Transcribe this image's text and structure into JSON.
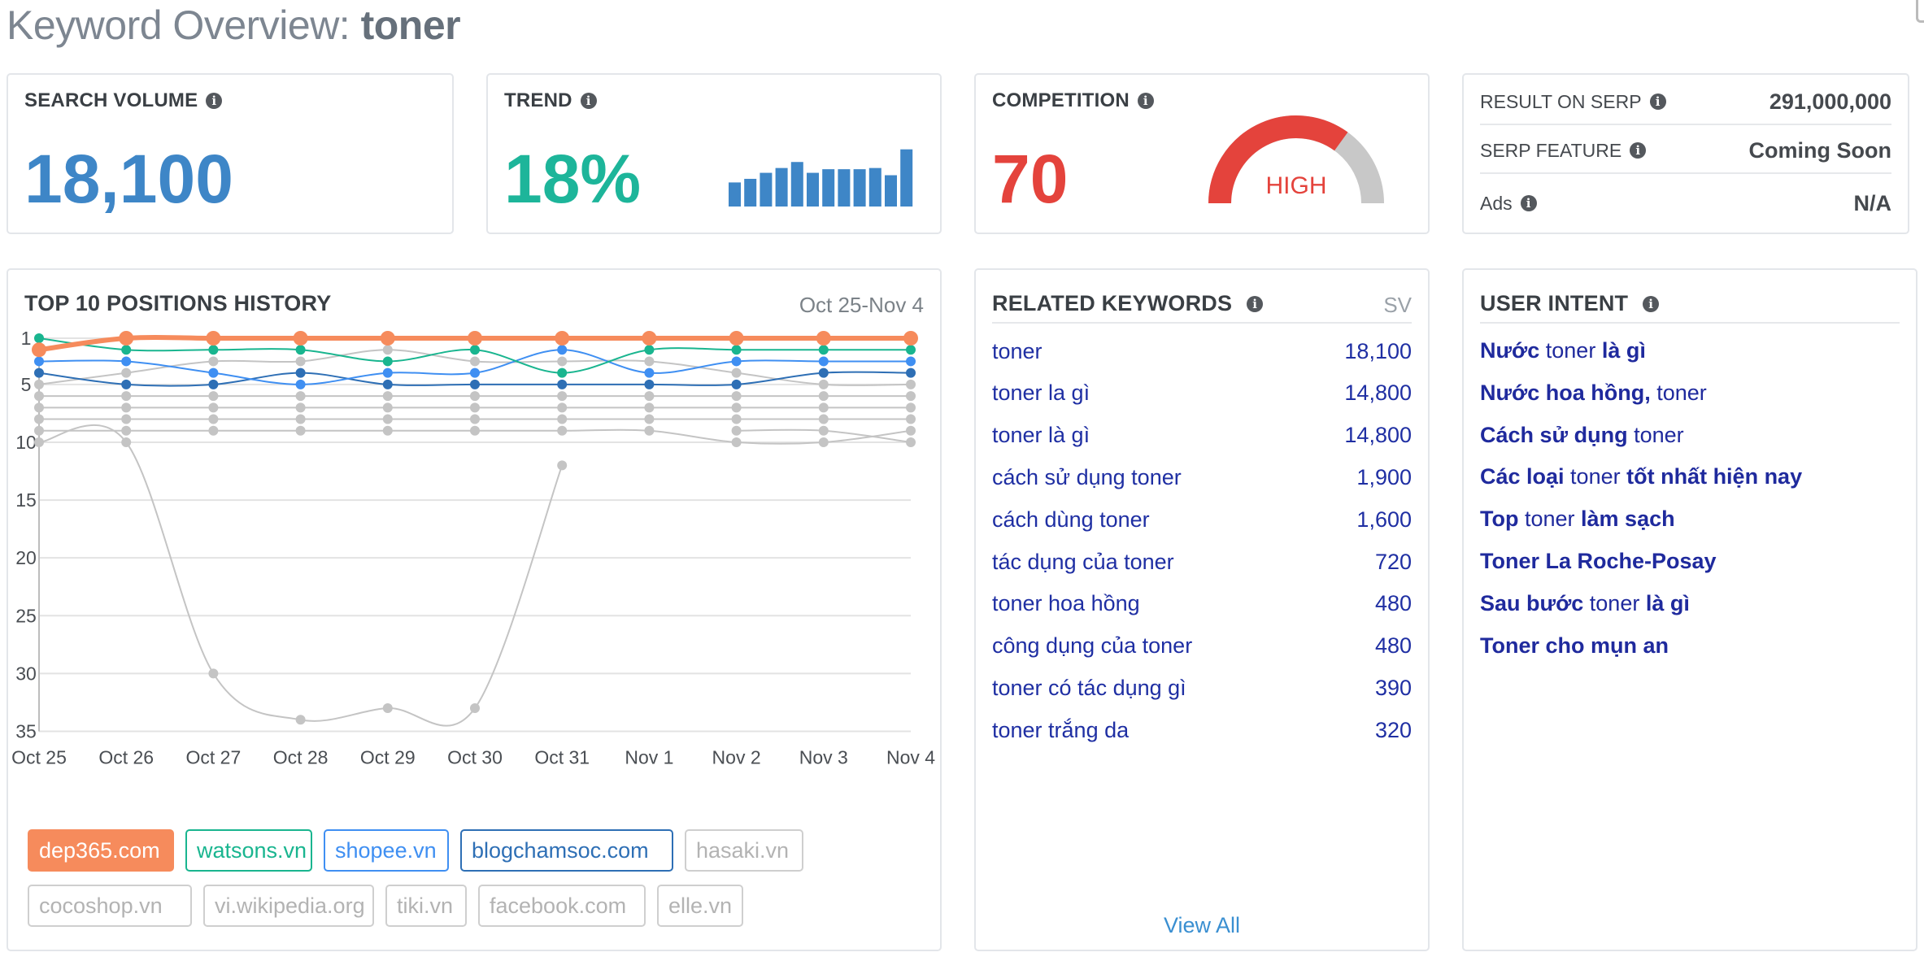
{
  "page": {
    "title_prefix": "Keyword Overview: ",
    "keyword": "toner"
  },
  "search_volume": {
    "label": "SEARCH VOLUME",
    "value": "18,100"
  },
  "trend": {
    "label": "TREND",
    "value": "18%",
    "bars": [
      40,
      46,
      56,
      64,
      74,
      56,
      62,
      62,
      62,
      64,
      52,
      95
    ],
    "bar_color": "#3e86c7"
  },
  "competition": {
    "label": "COMPETITION",
    "value": "70",
    "level": "HIGH",
    "gauge_fraction": 0.7,
    "color": "#e4433c"
  },
  "serp": {
    "rows": [
      {
        "label": "RESULT ON SERP",
        "value": "291,000,000"
      },
      {
        "label": "SERP FEATURE",
        "value": "Coming Soon"
      },
      {
        "label": "Ads",
        "value": "N/A"
      }
    ]
  },
  "history": {
    "title": "TOP 10 POSITIONS HISTORY",
    "date_range": "Oct 25-Nov 4"
  },
  "chart_data": {
    "type": "line",
    "title": "TOP 10 POSITIONS HISTORY",
    "x": [
      "Oct 25",
      "Oct 26",
      "Oct 27",
      "Oct 28",
      "Oct 29",
      "Oct 30",
      "Oct 31",
      "Nov 1",
      "Nov 2",
      "Nov 3",
      "Nov 4"
    ],
    "y_ticks": [
      1,
      5,
      10,
      15,
      20,
      25,
      30,
      35
    ],
    "ylim": [
      1,
      35
    ],
    "y_reversed": true,
    "grid": true,
    "series": [
      {
        "name": "dep365.com",
        "color": "#f68b5c",
        "thick": true,
        "values": [
          2,
          1,
          1,
          1,
          1,
          1,
          1,
          1,
          1,
          1,
          1
        ]
      },
      {
        "name": "watsons.vn",
        "color": "#19b58f",
        "values": [
          1,
          2,
          2,
          2,
          3,
          2,
          4,
          2,
          2,
          2,
          2
        ]
      },
      {
        "name": "shopee.vn",
        "color": "#3f8ff2",
        "values": [
          3,
          3,
          4,
          5,
          4,
          4,
          2,
          4,
          3,
          3,
          3
        ]
      },
      {
        "name": "blogchamsoc.com",
        "color": "#2e6fb5",
        "values": [
          4,
          5,
          5,
          4,
          5,
          5,
          5,
          5,
          5,
          4,
          4
        ]
      },
      {
        "name": "hasaki.vn",
        "color": "#c4c4c4",
        "values": [
          5,
          4,
          3,
          3,
          2,
          3,
          3,
          3,
          4,
          5,
          5
        ]
      },
      {
        "name": "cocoshop.vn",
        "color": "#c4c4c4",
        "values": [
          6,
          6,
          6,
          6,
          6,
          6,
          6,
          6,
          6,
          6,
          6
        ]
      },
      {
        "name": "vi.wikipedia.org",
        "color": "#c4c4c4",
        "values": [
          7,
          7,
          7,
          7,
          7,
          7,
          7,
          7,
          7,
          7,
          7
        ]
      },
      {
        "name": "tiki.vn",
        "color": "#c4c4c4",
        "values": [
          8,
          8,
          8,
          8,
          8,
          8,
          8,
          8,
          8,
          8,
          8
        ]
      },
      {
        "name": "facebook.com",
        "color": "#c4c4c4",
        "values": [
          9,
          9,
          9,
          9,
          9,
          9,
          9,
          9,
          10,
          10,
          9
        ]
      },
      {
        "name": "elle.vn",
        "color": "#c4c4c4",
        "values": [
          10,
          10,
          30,
          34,
          33,
          33,
          12,
          null,
          9,
          9,
          10
        ]
      }
    ]
  },
  "domains": [
    {
      "name": "dep365.com",
      "style": "filled",
      "color": "#f68b5c"
    },
    {
      "name": "watsons.vn",
      "style": "outline",
      "color": "#19b58f"
    },
    {
      "name": "shopee.vn",
      "style": "outline",
      "color": "#3f8ff2"
    },
    {
      "name": "blogchamsoc.com",
      "style": "outline",
      "color": "#2e6fb5"
    },
    {
      "name": "hasaki.vn",
      "style": "muted",
      "color": "#c4c4c4"
    },
    {
      "name": "cocoshop.vn",
      "style": "muted",
      "color": "#c4c4c4"
    },
    {
      "name": "vi.wikipedia.org",
      "style": "muted",
      "color": "#c4c4c4"
    },
    {
      "name": "tiki.vn",
      "style": "muted",
      "color": "#c4c4c4"
    },
    {
      "name": "facebook.com",
      "style": "muted",
      "color": "#c4c4c4"
    },
    {
      "name": "elle.vn",
      "style": "muted",
      "color": "#c4c4c4"
    }
  ],
  "related": {
    "title": "RELATED KEYWORDS",
    "sv_label": "SV",
    "view_all": "View All",
    "items": [
      {
        "keyword": "toner",
        "sv": "18,100"
      },
      {
        "keyword": "toner la gì",
        "sv": "14,800"
      },
      {
        "keyword": "toner là gì",
        "sv": "14,800"
      },
      {
        "keyword": "cách sử dụng toner",
        "sv": "1,900"
      },
      {
        "keyword": "cách dùng toner",
        "sv": "1,600"
      },
      {
        "keyword": "tác dụng của toner",
        "sv": "720"
      },
      {
        "keyword": "toner hoa hồng",
        "sv": "480"
      },
      {
        "keyword": "công dụng của toner",
        "sv": "480"
      },
      {
        "keyword": "toner có tác dụng gì",
        "sv": "390"
      },
      {
        "keyword": "toner trắng da",
        "sv": "320"
      }
    ]
  },
  "intent": {
    "title": "USER INTENT",
    "items": [
      {
        "pre": "Nước",
        "mid": " toner ",
        "post": "là gì"
      },
      {
        "pre": "Nước hoa hồng,",
        "mid": " toner",
        "post": ""
      },
      {
        "pre": "Cách sử dụng",
        "mid": " toner",
        "post": ""
      },
      {
        "pre": "Các loại",
        "mid": " toner ",
        "post": "tốt nhất hiện nay"
      },
      {
        "pre": "Top",
        "mid": " toner ",
        "post": "làm sạch"
      },
      {
        "pre": "Toner La Roche-Posay",
        "mid": "",
        "post": ""
      },
      {
        "pre": "Sau bước",
        "mid": " toner ",
        "post": "là gì"
      },
      {
        "pre": "Toner cho mụn an",
        "mid": "",
        "post": ""
      }
    ]
  },
  "colors": {
    "blue": "#3e86c7",
    "teal": "#1db59a",
    "red": "#e4433c",
    "link": "#1f2fa3"
  }
}
